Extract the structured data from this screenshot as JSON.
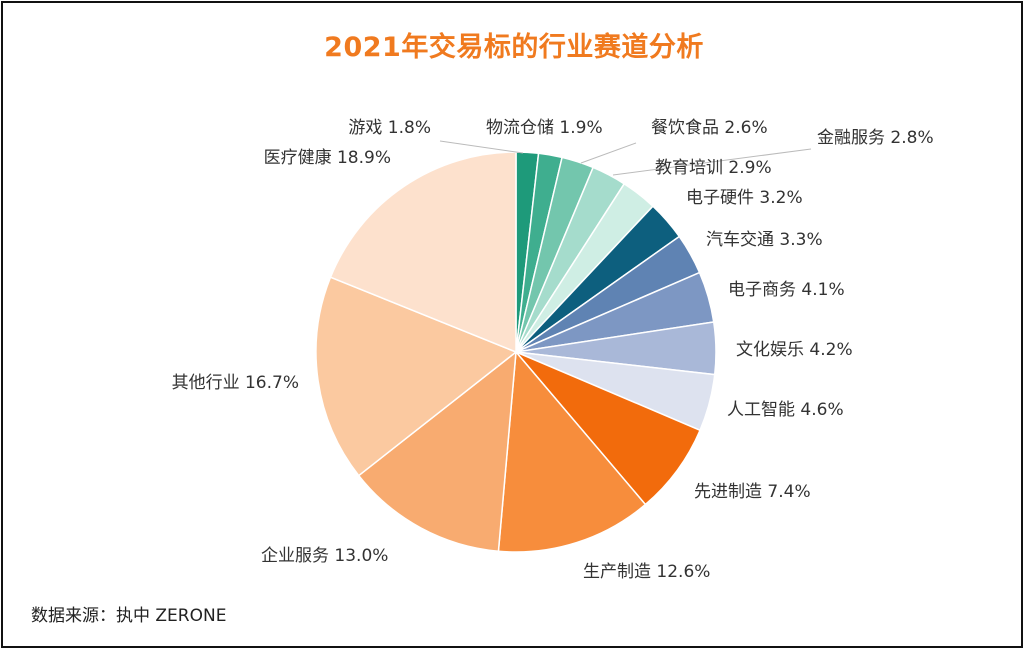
{
  "chart_data": {
    "type": "pie",
    "title": "2021年交易标的行业赛道分析",
    "slices": [
      {
        "label": "游戏",
        "value": 1.8,
        "display": "1.8%",
        "color": "#1e9a7a"
      },
      {
        "label": "物流仓储",
        "value": 1.9,
        "display": "1.9%",
        "color": "#3fae8f"
      },
      {
        "label": "餐饮食品",
        "value": 2.6,
        "display": "2.6%",
        "color": "#73c6ad"
      },
      {
        "label": "金融服务",
        "value": 2.8,
        "display": "2.8%",
        "color": "#a5dccc"
      },
      {
        "label": "教育培训",
        "value": 2.9,
        "display": "2.9%",
        "color": "#cfeee4"
      },
      {
        "label": "电子硬件",
        "value": 3.2,
        "display": "3.2%",
        "color": "#0d5f7e"
      },
      {
        "label": "汽车交通",
        "value": 3.3,
        "display": "3.3%",
        "color": "#5f83b3"
      },
      {
        "label": "电子商务",
        "value": 4.1,
        "display": "4.1%",
        "color": "#7d97c3"
      },
      {
        "label": "文化娱乐",
        "value": 4.2,
        "display": "4.2%",
        "color": "#a9b8d8"
      },
      {
        "label": "人工智能",
        "value": 4.6,
        "display": "4.6%",
        "color": "#dde2ef"
      },
      {
        "label": "先进制造",
        "value": 7.4,
        "display": "7.4%",
        "color": "#f26b0c"
      },
      {
        "label": "生产制造",
        "value": 12.6,
        "display": "12.6%",
        "color": "#f78d3c"
      },
      {
        "label": "企业服务",
        "value": 13.0,
        "display": "13.0%",
        "color": "#f8ab70"
      },
      {
        "label": "其他行业",
        "value": 16.7,
        "display": "16.7%",
        "color": "#fbc9a0"
      },
      {
        "label": "医疗健康",
        "value": 18.9,
        "display": "18.9%",
        "color": "#fde1cd"
      }
    ]
  },
  "source": "数据来源：执中 ZERONE"
}
